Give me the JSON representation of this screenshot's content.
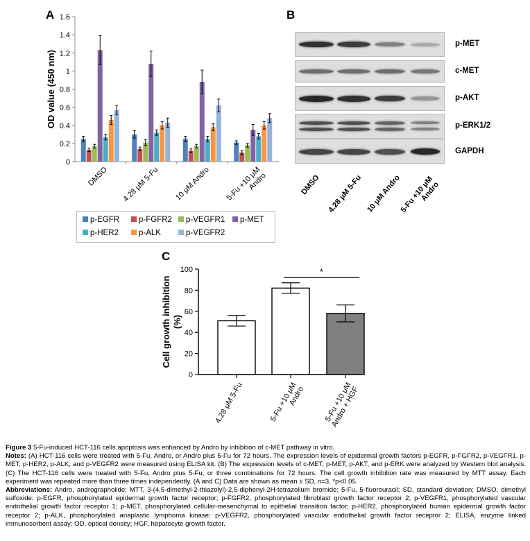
{
  "panels": {
    "a": "A",
    "b": "B",
    "c": "C"
  },
  "chart_data": [
    {
      "type": "bar",
      "panel": "A",
      "ylabel": "OD value (450 nm)",
      "ylim": [
        0,
        1.6
      ],
      "yticks": [
        "0",
        "0.2",
        "0.4",
        "0.6",
        "0.8",
        "1",
        "1.2",
        "1.4",
        "1.6"
      ],
      "categories": [
        "DMSO",
        "4.28 μM 5-Fu",
        "10 μM Andro",
        "5-Fu +10 μM\nAndro"
      ],
      "series": [
        {
          "name": "p-EGFR",
          "color": "#4f81bd",
          "values": [
            0.25,
            0.3,
            0.25,
            0.21
          ],
          "errors": [
            0.03,
            0.04,
            0.03,
            0.02
          ]
        },
        {
          "name": "p-FGFR2",
          "color": "#c0504d",
          "values": [
            0.13,
            0.14,
            0.12,
            0.1
          ],
          "errors": [
            0.02,
            0.02,
            0.02,
            0.02
          ]
        },
        {
          "name": "p-VEGFR1",
          "color": "#9bbb59",
          "values": [
            0.17,
            0.21,
            0.17,
            0.18
          ],
          "errors": [
            0.02,
            0.03,
            0.02,
            0.02
          ]
        },
        {
          "name": "p-MET",
          "color": "#8064a2",
          "values": [
            1.23,
            1.08,
            0.88,
            0.35
          ],
          "errors": [
            0.16,
            0.14,
            0.13,
            0.06
          ]
        },
        {
          "name": "p-HER2",
          "color": "#4bacc6",
          "values": [
            0.27,
            0.32,
            0.25,
            0.28
          ],
          "errors": [
            0.03,
            0.03,
            0.03,
            0.03
          ]
        },
        {
          "name": "p-ALK",
          "color": "#f79646",
          "values": [
            0.46,
            0.4,
            0.38,
            0.4
          ],
          "errors": [
            0.05,
            0.04,
            0.04,
            0.04
          ]
        },
        {
          "name": "p-VEGFR2",
          "color": "#95b3d7",
          "values": [
            0.57,
            0.43,
            0.62,
            0.48
          ],
          "errors": [
            0.05,
            0.05,
            0.07,
            0.05
          ]
        }
      ],
      "legend": "below"
    },
    {
      "type": "bar",
      "panel": "C",
      "ylabel": "Cell growth inhibition\n(%)",
      "ylim": [
        0,
        100
      ],
      "yticks": [
        "0",
        "20",
        "40",
        "60",
        "80",
        "100"
      ],
      "categories": [
        "4.28 μM 5-Fu",
        "5-Fu +10 μM\nAndro",
        "5-Fu +10 μM\nAndro + HGF"
      ],
      "values": [
        51,
        82,
        58
      ],
      "errors": [
        5,
        5,
        8
      ],
      "fills": [
        "#ffffff",
        "#ffffff",
        "#808080"
      ],
      "annotation": "*"
    }
  ],
  "blot": {
    "rows": [
      "p-MET",
      "c-MET",
      "p-AKT",
      "p-ERK1/2",
      "GAPDH"
    ],
    "lanes": [
      "DMSO",
      "4.28 μM 5-Fu",
      "10 μM Andro",
      "5-Fu +10 μM\nAndro"
    ]
  },
  "caption": {
    "figure_label": "Figure 3",
    "figure_title": " 5-Fu-induced HCT-116 cells apoptosis was enhanced by Andro by inhibition of c-MET pathway in vitro.",
    "notes_label": "Notes:",
    "notes_text": " (A) HCT-116 cells were treated with 5-Fu, Andro, or Andro plus 5-Fu for 72 hours. The expression levels of epidermal growth factors p-EGFR, p-FGFR2, p-VEGFR1, p-MET, p-HER2, p-ALK, and p-VEGFR2 were measured using ELISA kit. (B) The expression levels of c-MET, p-MET, p-AKT, and p-ERK were analyzed by Western blot analysis. (C) The HCT-116 cells were treated with 5-Fu, Andro plus 5-Fu, or three combinations for 72 hours. The cell growth inhibition rate was measured by MTT assay. Each experiment was repeated more than three times independently. (A and C) Data are shown as mean ± SD, n=3, *p<0.05.",
    "abbrev_label": "Abbreviations:",
    "abbrev_text": " Andro, andrographolide; MTT, 3-(4,5-dimethyl-2-thiazolyl)-2,5-diphenyl-2H-tetrazolium bromide; 5-Fu, 5-fluorouracil; SD, standard deviation; DMSO, dimethyl sulfoxide; p-EGFR, phosphorylated epidermal growth factor receptor; p-FGFR2, phosphorylated fibroblast growth factor receptor 2; p-VEGFR1, phosphorylated vascular endothelial growth factor receptor 1; p-MET, phosphorylated cellular-mesenchymal to epithelial transition factor; p-HER2, phosphorylated human epidermal growth factor receptor 2; p-ALK, phosphorylated anaplastic lymphoma kinase; p-VEGFR2, phosphorylated vascular endothelial growth factor receptor 2; ELISA, enzyme linked immunosorbent assay; OD, optical density; HGF, hepatocyte growth factor."
  }
}
